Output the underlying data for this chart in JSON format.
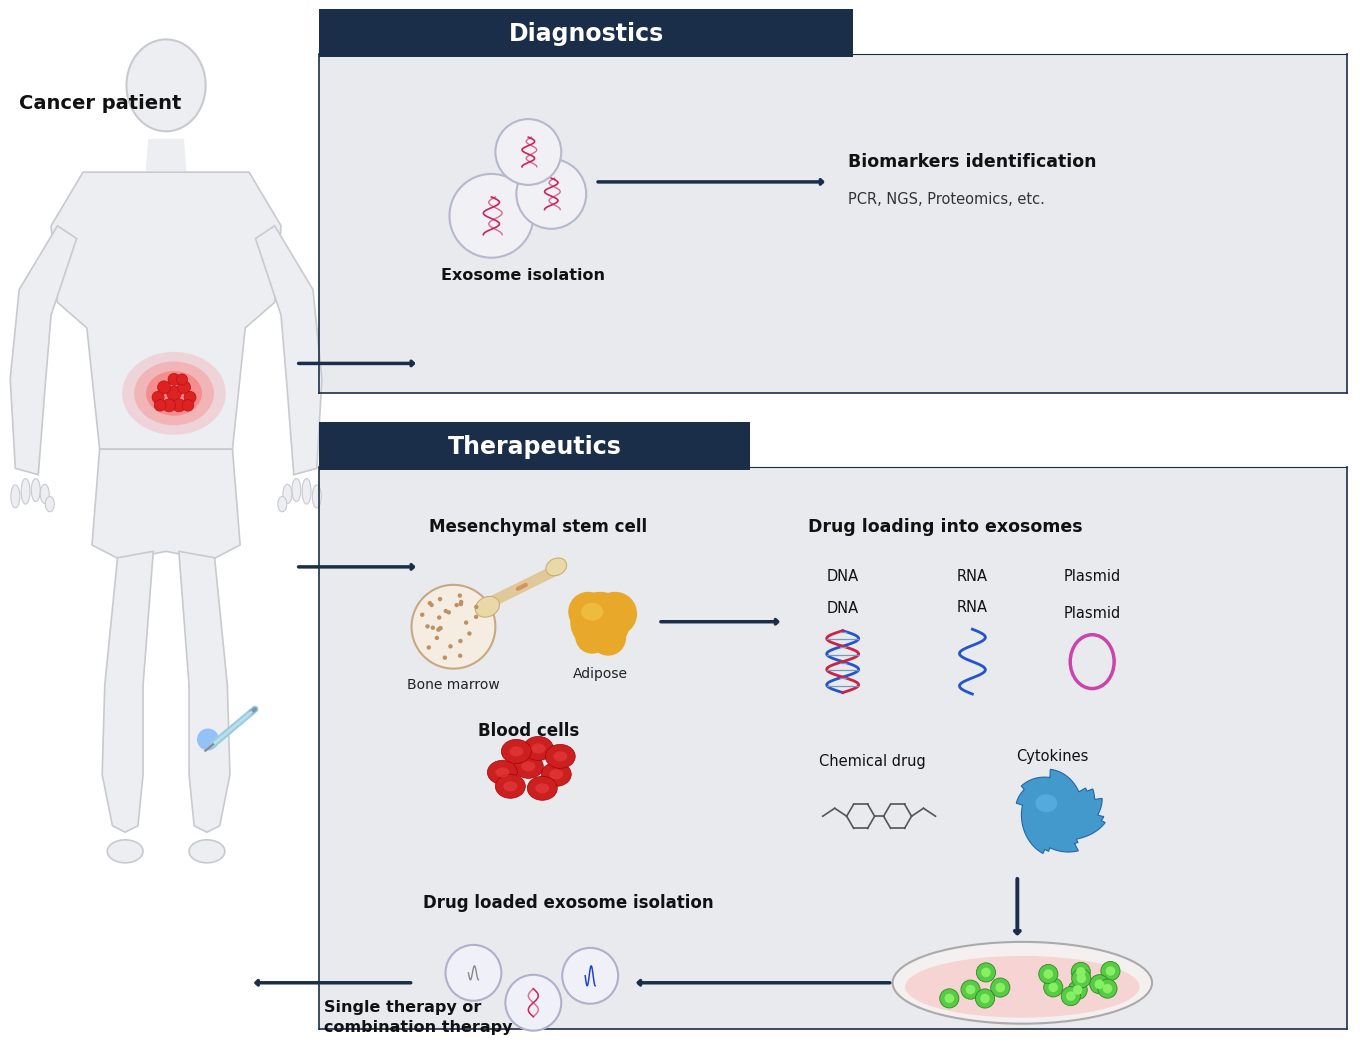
{
  "bg_color": "#ffffff",
  "panel_bg": "#e8eaee",
  "header_color": "#1a2e4a",
  "diagnostics_header": "Diagnostics",
  "therapeutics_header": "Therapeutics",
  "cancer_patient_label": "Cancer patient",
  "exosome_isolation_label": "Exosome isolation",
  "biomarkers_title": "Biomarkers identification",
  "biomarkers_subtitle": "PCR, NGS, Proteomics, etc.",
  "mesenchymal_label": "Mesenchymal stem cell",
  "bone_marrow_label": "Bone marrow",
  "adipose_label": "Adipose",
  "blood_cells_label": "Blood cells",
  "drug_loading_label": "Drug loading into exosomes",
  "dna_label": "DNA",
  "rna_label": "RNA",
  "plasmid_label": "Plasmid",
  "chemical_drug_label": "Chemical drug",
  "cytokines_label": "Cytokines",
  "drug_loaded_label": "Drug loaded exosome isolation",
  "therapy_label": "Single therapy or\ncombination therapy",
  "arrow_color": "#1a2e4a",
  "dark_navy": "#1a2e4a",
  "silhouette_color": "#e8eaee",
  "silhouette_edge": "#c8ccd2"
}
